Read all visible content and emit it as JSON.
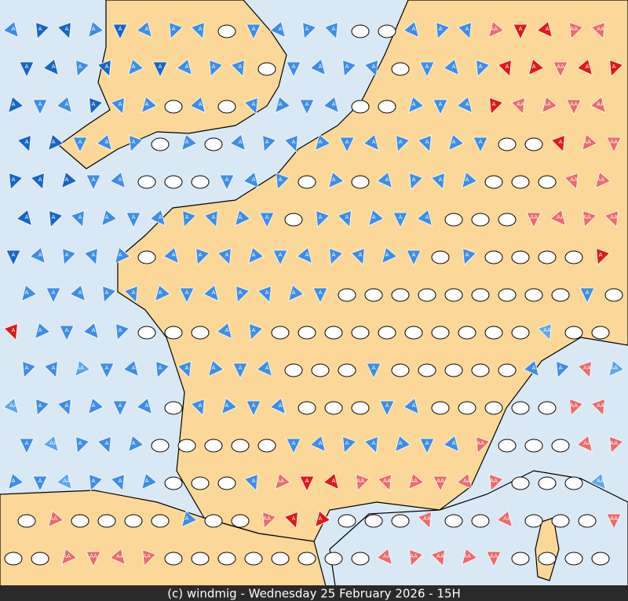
{
  "footer": "(c) windmig - Wednesday 25 February 2026 - 15H",
  "labels": [
    "A",
    "AA"
  ],
  "map": {
    "kinds": {
      "o": {
        "shape": "ellipse",
        "color": "#ffffff"
      },
      "b": {
        "shape": "triangle",
        "color": "#3d8ee8",
        "label": 0
      },
      "B": {
        "shape": "triangle",
        "color": "#1566c8",
        "label": 0
      },
      "c": {
        "shape": "triangle",
        "color": "#5aa8ee",
        "label": 1
      },
      "r": {
        "shape": "triangle",
        "color": "#ee6a6a",
        "label": 1
      },
      "R": {
        "shape": "triangle",
        "color": "#e01818",
        "label": 0
      }
    },
    "rows": [
      "bBBbBbbbobbbboobbbrRRrrR",
      "BBbBbBbbbobbbbobbbRRrRRr",
      "BbbBbbobobbbboobbbRrrrrr",
      "BBbbbobobbbbbbbbbbooRrrr",
      "BBBbbooobbbobobbbbooorrr",
      "BBbbbbbbbbobbbbbooorrrro",
      "BbbbbobbbbbbbbbbobooooRr",
      "bbbbbbbbbbbbooooooooobob",
      "Rbbbbooobboooooooooocoob",
      "bbcbbbbbbbooobooooobbrcb",
      "cbbbbbobbbbooobbooooorrr",
      "bcbbbooooobbbbbbbrooorrr",
      "bbcbbbooobrRRrrrrrroooco",
      "orooooboorRRoooroorooorr",
      "oorrrroooooooorrrrrooooc"
    ]
  }
}
